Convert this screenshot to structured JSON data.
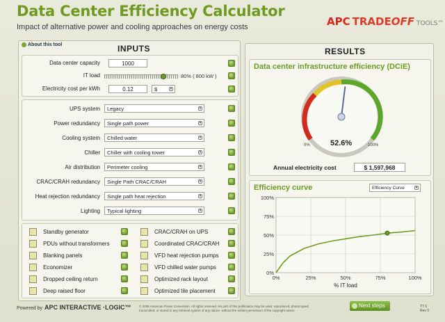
{
  "header": {
    "title": "Data Center Efficiency Calculator",
    "subtitle": "Impact of alternative power and cooling approaches on energy costs",
    "logo_apc": "APC",
    "logo_trade": "TRADE",
    "logo_off": "OFF",
    "logo_tools": "TOOLS™"
  },
  "inputs": {
    "about_link": "About this tool",
    "title": "INPUTS",
    "capacity_label": "Data center capacity",
    "capacity_value": "1000",
    "it_load_label": "IT load",
    "it_load_percent": 80,
    "it_load_readout": "80%  ( 800 kW )",
    "elec_label": "Electricity cost per kWh",
    "elec_value": "0.12",
    "currency": "$",
    "selects": [
      {
        "label": "UPS system",
        "value": "Legacy"
      },
      {
        "label": "Power redundancy",
        "value": "Single path power"
      },
      {
        "label": "Cooling system",
        "value": "Chilled water"
      },
      {
        "label": "Chiller",
        "value": "Chiller with cooling tower"
      },
      {
        "label": "Air distribution",
        "value": "Perimeter cooling"
      },
      {
        "label": "CRAC/CRAH redundancy",
        "value": "Single Path CRAC/CRAH"
      },
      {
        "label": "Heat rejection redundancy",
        "value": "Single path heat rejection"
      },
      {
        "label": "Lighting",
        "value": "Typical lighting"
      }
    ],
    "checks_left": [
      "Standby generator",
      "PDUs without transformers",
      "Blanking panels",
      "Economizer",
      "Dropped ceiling return",
      "Deep raised floor"
    ],
    "checks_right": [
      "CRAC/CRAH on UPS",
      "Coordinated CRAC/CRAH",
      "VFD heat rejection pumps",
      "VFD chilled water pumps",
      "Optimized rack layout",
      "Optimized tile placement"
    ]
  },
  "results": {
    "title": "RESULTS",
    "dcie_title": "Data center infrastructure efficiency (DCiE)",
    "gauge_value": "52.6%",
    "gauge_fraction": 0.526,
    "gauge_min": "0%",
    "gauge_max": "100%",
    "annual_label": "Annual electricity cost",
    "annual_value": "$ 1,597,968",
    "curve_title": "Efficiency curve",
    "curve_select": "Efficiency Curve"
  },
  "chart_data": {
    "type": "line",
    "title": "Efficiency curve",
    "xlabel": "% IT load",
    "ylabel": "",
    "x": [
      0,
      5,
      10,
      20,
      30,
      40,
      50,
      60,
      70,
      80,
      90,
      100
    ],
    "y": [
      0,
      13,
      22,
      32,
      38,
      42,
      45,
      48,
      50,
      52.6,
      54,
      56
    ],
    "marker": {
      "x": 80,
      "y": 52.6
    },
    "xlim": [
      0,
      100
    ],
    "ylim": [
      0,
      100
    ],
    "xticks": [
      "0%",
      "25%",
      "50%",
      "75%",
      "100%"
    ],
    "yticks": [
      "0%",
      "25%",
      "50%",
      "75%",
      "100%"
    ],
    "grid": true,
    "line_color": "#6f9a22"
  },
  "footer": {
    "powered": "Powered by",
    "brand": "APC INTERACTIVE ·LOGIC™",
    "copyright": "© 2008 American Power Conversion. All rights reserved. No part of this publication may be used, reproduced, photocopied, transmitted, or stored in any retrieval system of any nature, without the written permission of the copyright owner.",
    "next_button": "Next steps",
    "version": "TT 6",
    "rev": "Rev 0"
  }
}
